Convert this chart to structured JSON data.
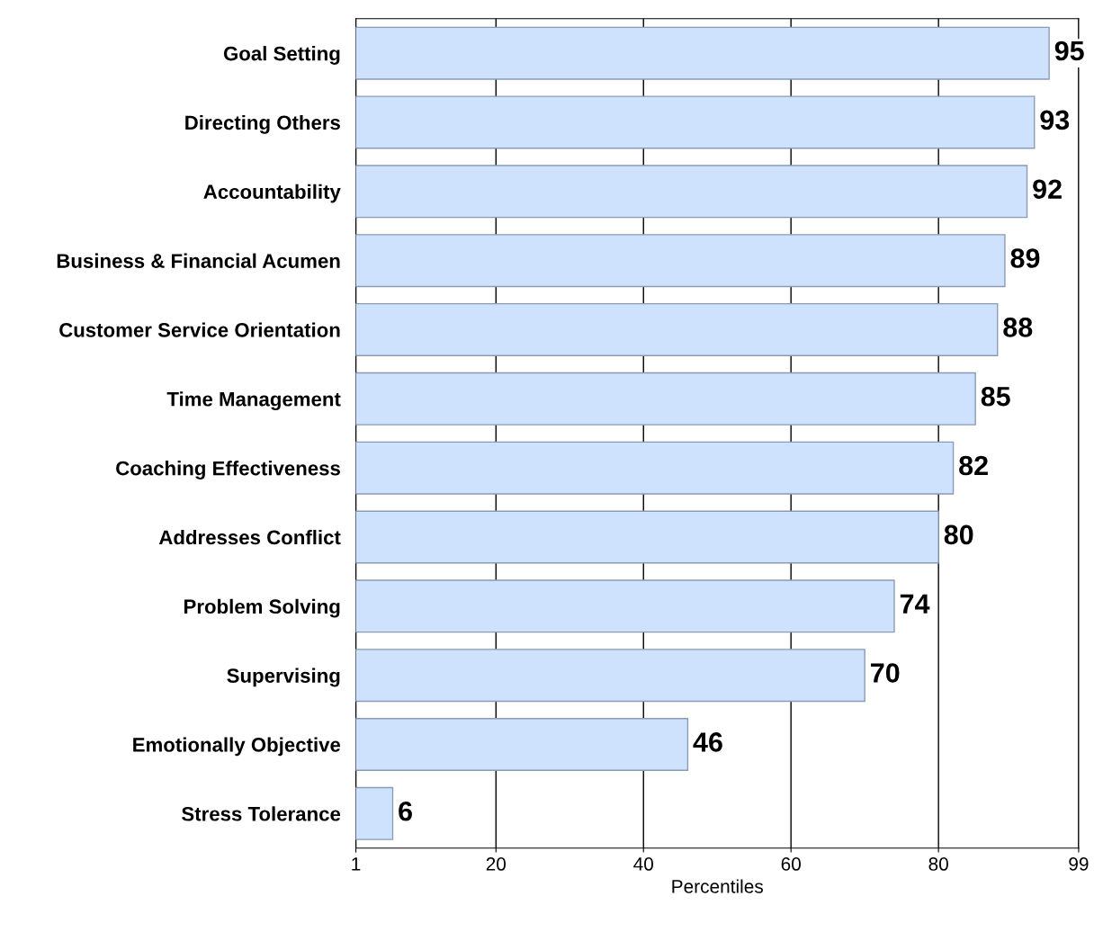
{
  "chart_data": {
    "type": "bar",
    "orientation": "horizontal",
    "xlabel": "Percentiles",
    "categories": [
      "Goal Setting",
      "Directing Others",
      "Accountability",
      "Business & Financial Acumen",
      "Customer Service Orientation",
      "Time Management",
      "Coaching Effectiveness",
      "Addresses Conflict",
      "Problem Solving",
      "Supervising",
      "Emotionally Objective",
      "Stress Tolerance"
    ],
    "values": [
      95,
      93,
      92,
      89,
      88,
      85,
      82,
      80,
      74,
      70,
      46,
      6
    ],
    "color": "#cfe2fd",
    "xlim": [
      1,
      99
    ],
    "xticks": [
      1,
      20,
      40,
      60,
      80,
      99
    ],
    "grid": "x",
    "data_labels": true
  }
}
